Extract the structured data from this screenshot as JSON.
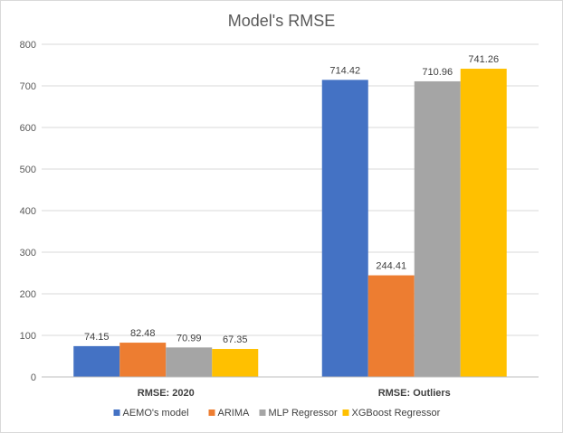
{
  "chart_data": {
    "type": "bar",
    "title": "Model's RMSE",
    "xlabel": "",
    "ylabel": "",
    "ylim": [
      0,
      800
    ],
    "yticks": [
      0,
      100,
      200,
      300,
      400,
      500,
      600,
      700,
      800
    ],
    "categories": [
      "RMSE: 2020",
      "RMSE: Outliers"
    ],
    "series": [
      {
        "name": "AEMO's model",
        "color": "#4472C4",
        "values": [
          74.15,
          714.42
        ],
        "labels": [
          "74.15",
          "714.42"
        ]
      },
      {
        "name": "ARIMA",
        "color": "#ED7D31",
        "values": [
          82.48,
          244.41
        ],
        "labels": [
          "82.48",
          "244.41"
        ]
      },
      {
        "name": "MLP Regressor",
        "color": "#A5A5A5",
        "values": [
          70.99,
          710.96
        ],
        "labels": [
          "70.99",
          "710.96"
        ]
      },
      {
        "name": "XGBoost Regressor",
        "color": "#FFC000",
        "values": [
          67.35,
          741.26
        ],
        "labels": [
          "67.35",
          "741.26"
        ]
      }
    ],
    "grid": true,
    "legend": "bottom"
  }
}
